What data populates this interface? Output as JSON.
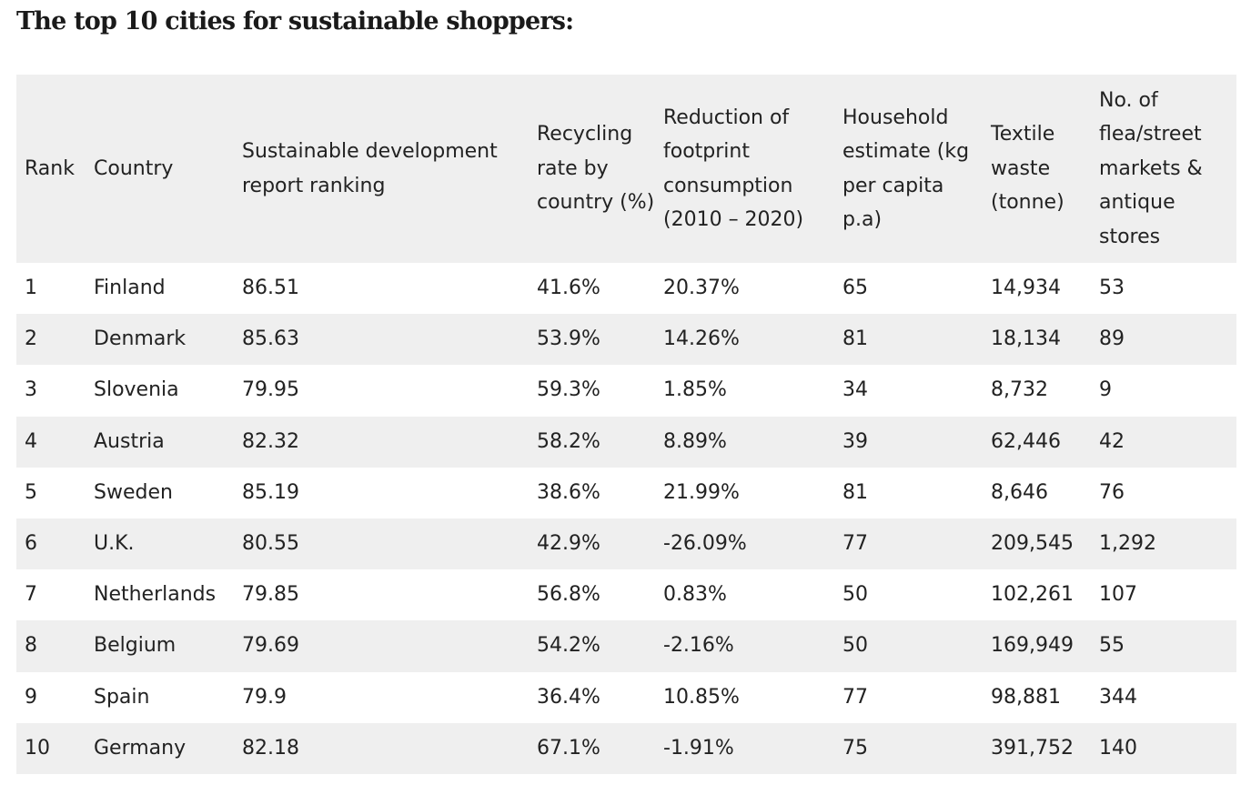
{
  "page": {
    "title": "The top 10 cities for sustainable shoppers:"
  },
  "table": {
    "headers": [
      "Rank",
      "Country",
      "Sustainable development report ranking",
      "Recycling rate by country (%)",
      "Reduction of footprint consumption (2010 – 2020)",
      "Household estimate (kg per capita p.a)",
      "Textile waste (tonne)",
      "No. of flea/street markets & antique stores"
    ],
    "rows": [
      [
        "1",
        "Finland",
        "86.51",
        "41.6%",
        "20.37%",
        "65",
        "14,934",
        "53"
      ],
      [
        "2",
        "Denmark",
        "85.63",
        "53.9%",
        "14.26%",
        "81",
        "18,134",
        "89"
      ],
      [
        "3",
        "Slovenia",
        "79.95",
        "59.3%",
        "1.85%",
        "34",
        "8,732",
        "9"
      ],
      [
        "4",
        "Austria",
        "82.32",
        "58.2%",
        "8.89%",
        "39",
        "62,446",
        "42"
      ],
      [
        "5",
        "Sweden",
        "85.19",
        "38.6%",
        "21.99%",
        "81",
        "8,646",
        "76"
      ],
      [
        "6",
        "U.K.",
        "80.55",
        "42.9%",
        "-26.09%",
        "77",
        "209,545",
        "1,292"
      ],
      [
        "7",
        "Netherlands",
        "79.85",
        "56.8%",
        "0.83%",
        "50",
        "102,261",
        "107"
      ],
      [
        "8",
        "Belgium",
        "79.69",
        "54.2%",
        "-2.16%",
        "50",
        "169,949",
        "55"
      ],
      [
        "9",
        "Spain",
        "79.9",
        "36.4%",
        "10.85%",
        "77",
        "98,881",
        "344"
      ],
      [
        "10",
        "Germany",
        "82.18",
        "67.1%",
        "-1.91%",
        "75",
        "391,752",
        "140"
      ]
    ]
  },
  "colors": {
    "header_background": "#efefef",
    "stripe_background": "#efefef",
    "text": "#222222"
  }
}
